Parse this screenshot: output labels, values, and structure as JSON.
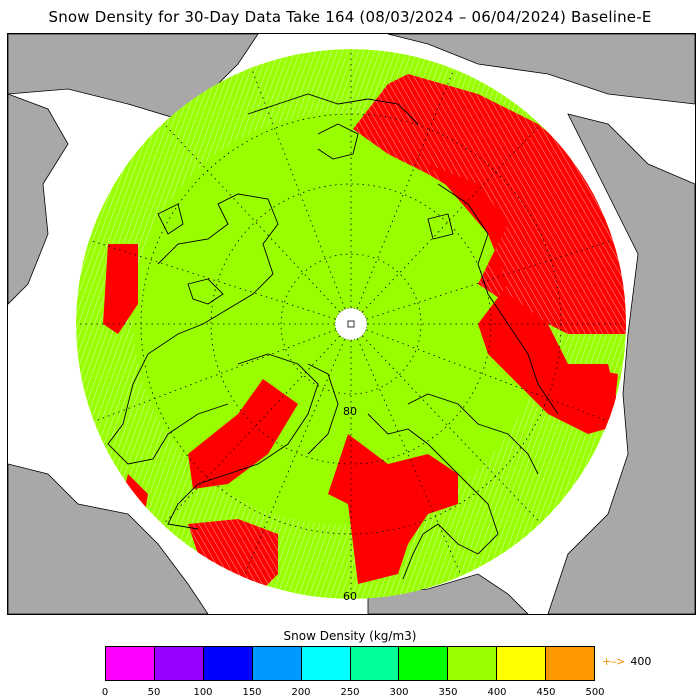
{
  "title": "Snow Density for 30-Day Data Take 164 (08/03/2024 – 06/04/2024) Baseline-E",
  "map": {
    "projection": "north-polar-stereographic",
    "latitude_labels": [
      "80",
      "60"
    ],
    "colors": {
      "ocean": "#ffffff",
      "land": "#a8a8a8",
      "snow_density_350_400": "#99ff00",
      "snow_density_400_plus": "#ff0000",
      "coastline": "#000000",
      "graticule": "#000000"
    },
    "legend_note": "pole hole"
  },
  "colorbar": {
    "title": "Snow Density (kg/m3)",
    "colors": [
      "#ff00ff",
      "#9900ff",
      "#0000ff",
      "#0099ff",
      "#00ffff",
      "#00ff99",
      "#00ff00",
      "#99ff00",
      "#ffff00",
      "#ff9900"
    ],
    "tick_labels": [
      "0",
      "50",
      "100",
      "150",
      "200",
      "250",
      "300",
      "350",
      "400",
      "450",
      "500"
    ],
    "overflow_arrow": "+-->",
    "overflow_value": "400"
  }
}
